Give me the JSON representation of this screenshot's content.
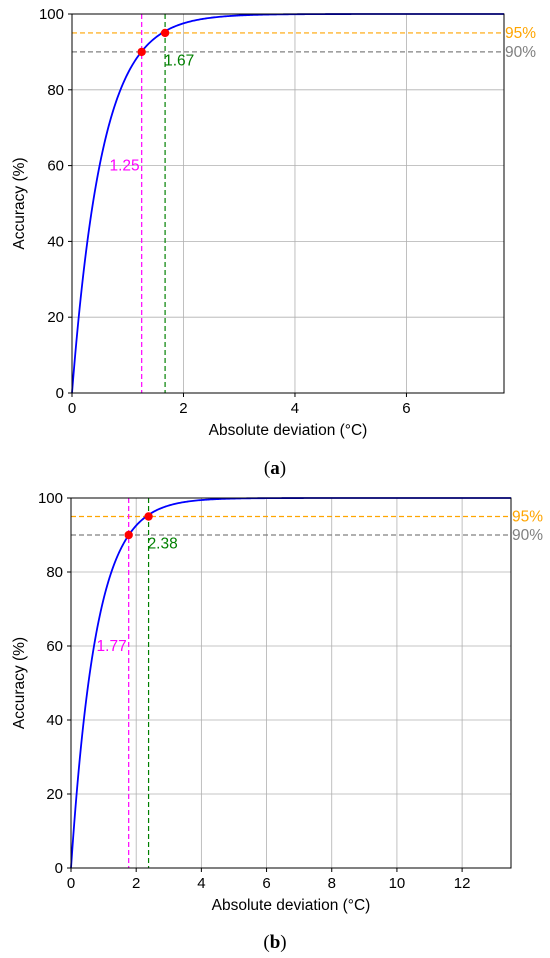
{
  "chart_data": [
    {
      "panel": "a",
      "caption_label": "a",
      "type": "line",
      "xlabel": "Absolute deviation (°C)",
      "ylabel": "Accuracy (%)",
      "xlim": [
        0,
        7.75
      ],
      "ylim": [
        0,
        100
      ],
      "xticks": [
        0,
        2,
        4,
        6
      ],
      "yticks": [
        0,
        20,
        40,
        60,
        80,
        100
      ],
      "grid": true,
      "curve_scale": 0.54,
      "series": [
        {
          "color": "#0000ff",
          "x": [
            0,
            0.1,
            0.2,
            0.3,
            0.4,
            0.5,
            0.6,
            0.8,
            1.0,
            1.25,
            1.5,
            1.67,
            2.0,
            2.5,
            3.0,
            3.5,
            4.0,
            5.0,
            6.0,
            7.75
          ],
          "y": [
            0,
            16.9,
            30.9,
            42.6,
            52.3,
            60.4,
            67.1,
            77.2,
            84.3,
            90.1,
            93.8,
            95.5,
            97.6,
            99.0,
            99.6,
            99.8,
            99.9,
            100.0,
            100.0,
            100.0
          ]
        }
      ],
      "hlines": [
        {
          "y": 95,
          "label": "95%",
          "color": "#ffa500"
        },
        {
          "y": 90,
          "label": "90%",
          "color": "#808080"
        }
      ],
      "vlines": [
        {
          "x": 1.25,
          "label": "1.25",
          "color": "#ff00ff"
        },
        {
          "x": 1.67,
          "label": "1.67",
          "color": "#008000"
        }
      ],
      "points": [
        {
          "x": 1.25,
          "y": 90,
          "color": "#ff0000"
        },
        {
          "x": 1.67,
          "y": 95,
          "color": "#ff0000"
        }
      ]
    },
    {
      "panel": "b",
      "caption_label": "b",
      "type": "line",
      "xlabel": "Absolute deviation (°C)",
      "ylabel": "Accuracy (%)",
      "xlim": [
        0,
        13.5
      ],
      "ylim": [
        0,
        100
      ],
      "xticks": [
        0,
        2,
        4,
        6,
        8,
        10,
        12
      ],
      "yticks": [
        0,
        20,
        40,
        60,
        80,
        100
      ],
      "grid": true,
      "curve_scale": 0.77,
      "series": [
        {
          "color": "#0000ff",
          "x": [
            0,
            0.2,
            0.4,
            0.6,
            0.8,
            1.0,
            1.2,
            1.5,
            1.77,
            2.0,
            2.38,
            3.0,
            4.0,
            5.0,
            6.0,
            8.0,
            10.0,
            13.5
          ],
          "y": [
            0,
            22.9,
            40.5,
            54.2,
            64.7,
            72.8,
            79.0,
            85.8,
            90.0,
            92.6,
            95.4,
            97.9,
            99.4,
            99.8,
            100.0,
            100.0,
            100.0,
            100.0
          ]
        }
      ],
      "hlines": [
        {
          "y": 95,
          "label": "95%",
          "color": "#ffa500"
        },
        {
          "y": 90,
          "label": "90%",
          "color": "#808080"
        }
      ],
      "vlines": [
        {
          "x": 1.77,
          "label": "1.77",
          "color": "#ff00ff"
        },
        {
          "x": 2.38,
          "label": "2.38",
          "color": "#008000"
        }
      ],
      "points": [
        {
          "x": 1.77,
          "y": 90,
          "color": "#ff0000"
        },
        {
          "x": 2.38,
          "y": 95,
          "color": "#ff0000"
        }
      ]
    }
  ]
}
